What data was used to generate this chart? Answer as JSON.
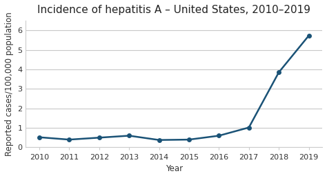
{
  "title": "Incidence of hepatitis A – United States, 2010–2019",
  "xlabel": "Year",
  "ylabel": "Reported cases/100,000 population",
  "years": [
    2010,
    2011,
    2012,
    2013,
    2014,
    2015,
    2016,
    2017,
    2018,
    2019
  ],
  "values": [
    0.52,
    0.4,
    0.5,
    0.6,
    0.38,
    0.4,
    0.6,
    1.02,
    3.85,
    5.73
  ],
  "line_color": "#1a5276",
  "marker": "o",
  "marker_size": 4,
  "linewidth": 1.8,
  "ylim": [
    0,
    6.5
  ],
  "yticks": [
    0,
    1,
    2,
    3,
    4,
    5,
    6
  ],
  "background_color": "#ffffff",
  "plot_bg_color": "#ffffff",
  "grid_color": "#c8c8c8",
  "title_fontsize": 11,
  "label_fontsize": 8.5,
  "tick_fontsize": 8
}
